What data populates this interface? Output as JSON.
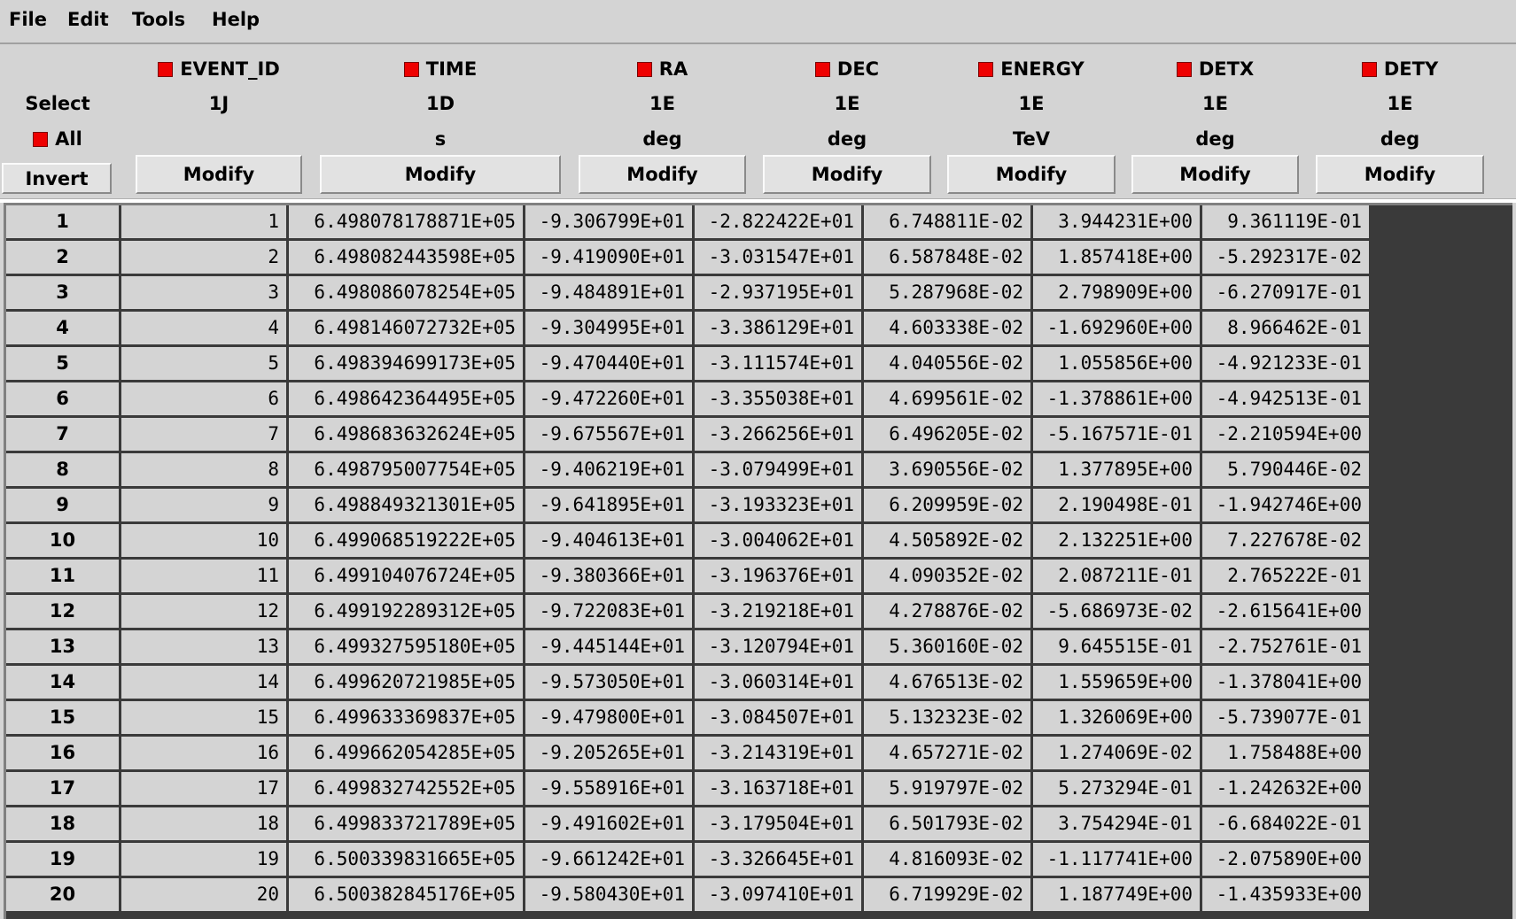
{
  "menu": {
    "file": "File",
    "edit": "Edit",
    "tools": "Tools",
    "help": "Help"
  },
  "header": {
    "select_label": "Select",
    "all_label": "All",
    "invert_label": "Invert",
    "modify_label": "Modify"
  },
  "columns": [
    {
      "name": "EVENT_ID",
      "format": "1J",
      "unit": ""
    },
    {
      "name": "TIME",
      "format": "1D",
      "unit": "s"
    },
    {
      "name": "RA",
      "format": "1E",
      "unit": "deg"
    },
    {
      "name": "DEC",
      "format": "1E",
      "unit": "deg"
    },
    {
      "name": "ENERGY",
      "format": "1E",
      "unit": "TeV"
    },
    {
      "name": "DETX",
      "format": "1E",
      "unit": "deg"
    },
    {
      "name": "DETY",
      "format": "1E",
      "unit": "deg"
    }
  ],
  "colors": {
    "select_box": "#ee0000",
    "background": "#d4d4d4",
    "grid": "#3a3a3a"
  },
  "rows": [
    [
      "1",
      "1",
      "6.498078178871E+05",
      "-9.306799E+01",
      "-2.822422E+01",
      "6.748811E-02",
      "3.944231E+00",
      "9.361119E-01"
    ],
    [
      "2",
      "2",
      "6.498082443598E+05",
      "-9.419090E+01",
      "-3.031547E+01",
      "6.587848E-02",
      "1.857418E+00",
      "-5.292317E-02"
    ],
    [
      "3",
      "3",
      "6.498086078254E+05",
      "-9.484891E+01",
      "-2.937195E+01",
      "5.287968E-02",
      "2.798909E+00",
      "-6.270917E-01"
    ],
    [
      "4",
      "4",
      "6.498146072732E+05",
      "-9.304995E+01",
      "-3.386129E+01",
      "4.603338E-02",
      "-1.692960E+00",
      "8.966462E-01"
    ],
    [
      "5",
      "5",
      "6.498394699173E+05",
      "-9.470440E+01",
      "-3.111574E+01",
      "4.040556E-02",
      "1.055856E+00",
      "-4.921233E-01"
    ],
    [
      "6",
      "6",
      "6.498642364495E+05",
      "-9.472260E+01",
      "-3.355038E+01",
      "4.699561E-02",
      "-1.378861E+00",
      "-4.942513E-01"
    ],
    [
      "7",
      "7",
      "6.498683632624E+05",
      "-9.675567E+01",
      "-3.266256E+01",
      "6.496205E-02",
      "-5.167571E-01",
      "-2.210594E+00"
    ],
    [
      "8",
      "8",
      "6.498795007754E+05",
      "-9.406219E+01",
      "-3.079499E+01",
      "3.690556E-02",
      "1.377895E+00",
      "5.790446E-02"
    ],
    [
      "9",
      "9",
      "6.498849321301E+05",
      "-9.641895E+01",
      "-3.193323E+01",
      "6.209959E-02",
      "2.190498E-01",
      "-1.942746E+00"
    ],
    [
      "10",
      "10",
      "6.499068519222E+05",
      "-9.404613E+01",
      "-3.004062E+01",
      "4.505892E-02",
      "2.132251E+00",
      "7.227678E-02"
    ],
    [
      "11",
      "11",
      "6.499104076724E+05",
      "-9.380366E+01",
      "-3.196376E+01",
      "4.090352E-02",
      "2.087211E-01",
      "2.765222E-01"
    ],
    [
      "12",
      "12",
      "6.499192289312E+05",
      "-9.722083E+01",
      "-3.219218E+01",
      "4.278876E-02",
      "-5.686973E-02",
      "-2.615641E+00"
    ],
    [
      "13",
      "13",
      "6.499327595180E+05",
      "-9.445144E+01",
      "-3.120794E+01",
      "5.360160E-02",
      "9.645515E-01",
      "-2.752761E-01"
    ],
    [
      "14",
      "14",
      "6.499620721985E+05",
      "-9.573050E+01",
      "-3.060314E+01",
      "4.676513E-02",
      "1.559659E+00",
      "-1.378041E+00"
    ],
    [
      "15",
      "15",
      "6.499633369837E+05",
      "-9.479800E+01",
      "-3.084507E+01",
      "5.132323E-02",
      "1.326069E+00",
      "-5.739077E-01"
    ],
    [
      "16",
      "16",
      "6.499662054285E+05",
      "-9.205265E+01",
      "-3.214319E+01",
      "4.657271E-02",
      "1.274069E-02",
      "1.758488E+00"
    ],
    [
      "17",
      "17",
      "6.499832742552E+05",
      "-9.558916E+01",
      "-3.163718E+01",
      "5.919797E-02",
      "5.273294E-01",
      "-1.242632E+00"
    ],
    [
      "18",
      "18",
      "6.499833721789E+05",
      "-9.491602E+01",
      "-3.179504E+01",
      "6.501793E-02",
      "3.754294E-01",
      "-6.684022E-01"
    ],
    [
      "19",
      "19",
      "6.500339831665E+05",
      "-9.661242E+01",
      "-3.326645E+01",
      "4.816093E-02",
      "-1.117741E+00",
      "-2.075890E+00"
    ],
    [
      "20",
      "20",
      "6.500382845176E+05",
      "-9.580430E+01",
      "-3.097410E+01",
      "6.719929E-02",
      "1.187749E+00",
      "-1.435933E+00"
    ]
  ]
}
